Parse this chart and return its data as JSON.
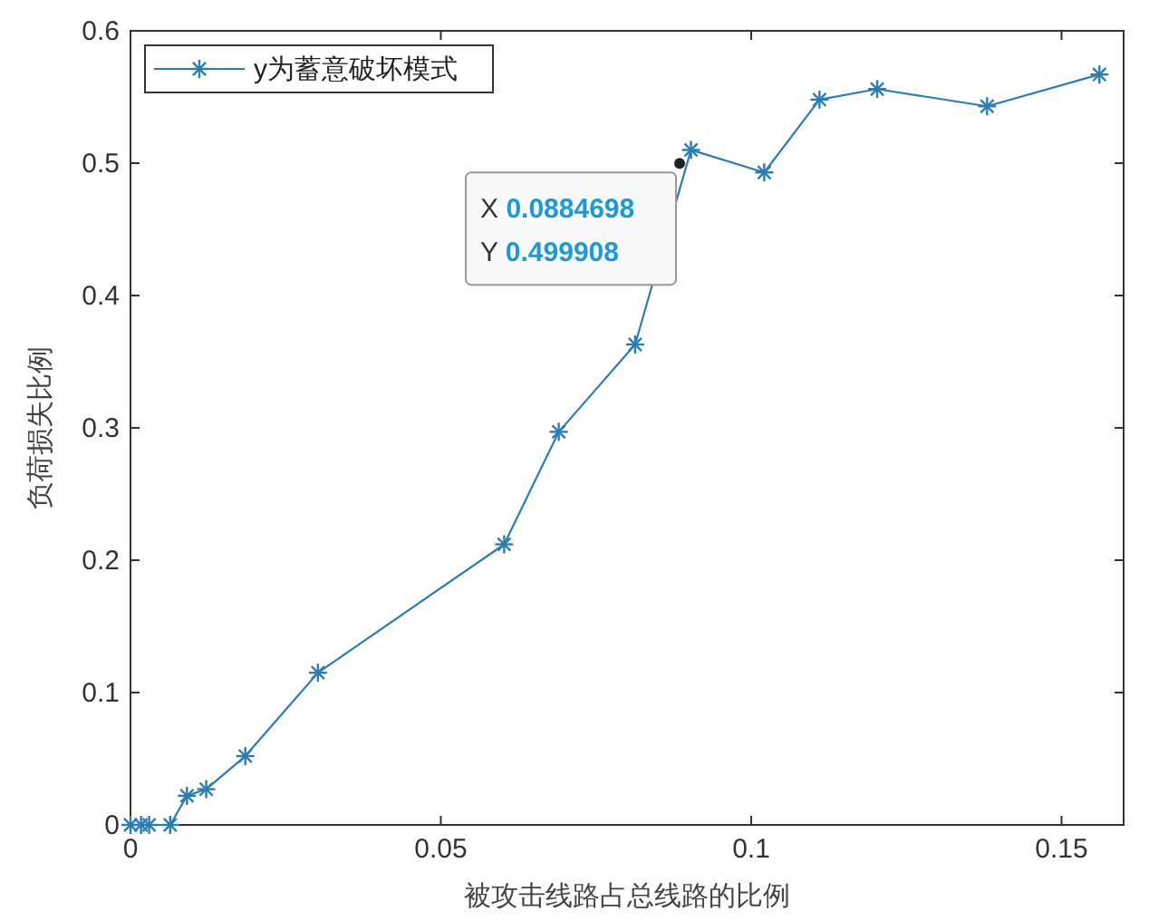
{
  "chart_data": {
    "type": "line",
    "xlabel": "被攻击线路占总线路的比例",
    "ylabel": "负荷损失比例",
    "x": [
      0,
      0.0017,
      0.003,
      0.0064,
      0.0091,
      0.0122,
      0.0185,
      0.0302,
      0.0602,
      0.069,
      0.0813,
      0.0903,
      0.1021,
      0.111,
      0.1203,
      0.138,
      0.1561
    ],
    "series": [
      {
        "name": "y为蓄意破坏模式",
        "color": "#2a7db5",
        "values": [
          0,
          0,
          0,
          0,
          0.022,
          0.027,
          0.052,
          0.115,
          0.212,
          0.297,
          0.363,
          0.51,
          0.493,
          0.548,
          0.556,
          0.543,
          0.567
        ]
      }
    ],
    "xlim": [
      0,
      0.16
    ],
    "xticks": [
      0,
      0.05,
      0.1,
      0.15
    ],
    "ylim": [
      0,
      0.6
    ],
    "yticks": [
      0,
      0.1,
      0.2,
      0.3,
      0.4,
      0.5,
      0.6
    ],
    "annotations": [
      {
        "text": "X 0.0884698\nY 0.499908",
        "x": 0.0884698,
        "y": 0.499908
      }
    ],
    "legend": "top left",
    "grid": false,
    "marker": "cross",
    "line_style": "solid"
  }
}
